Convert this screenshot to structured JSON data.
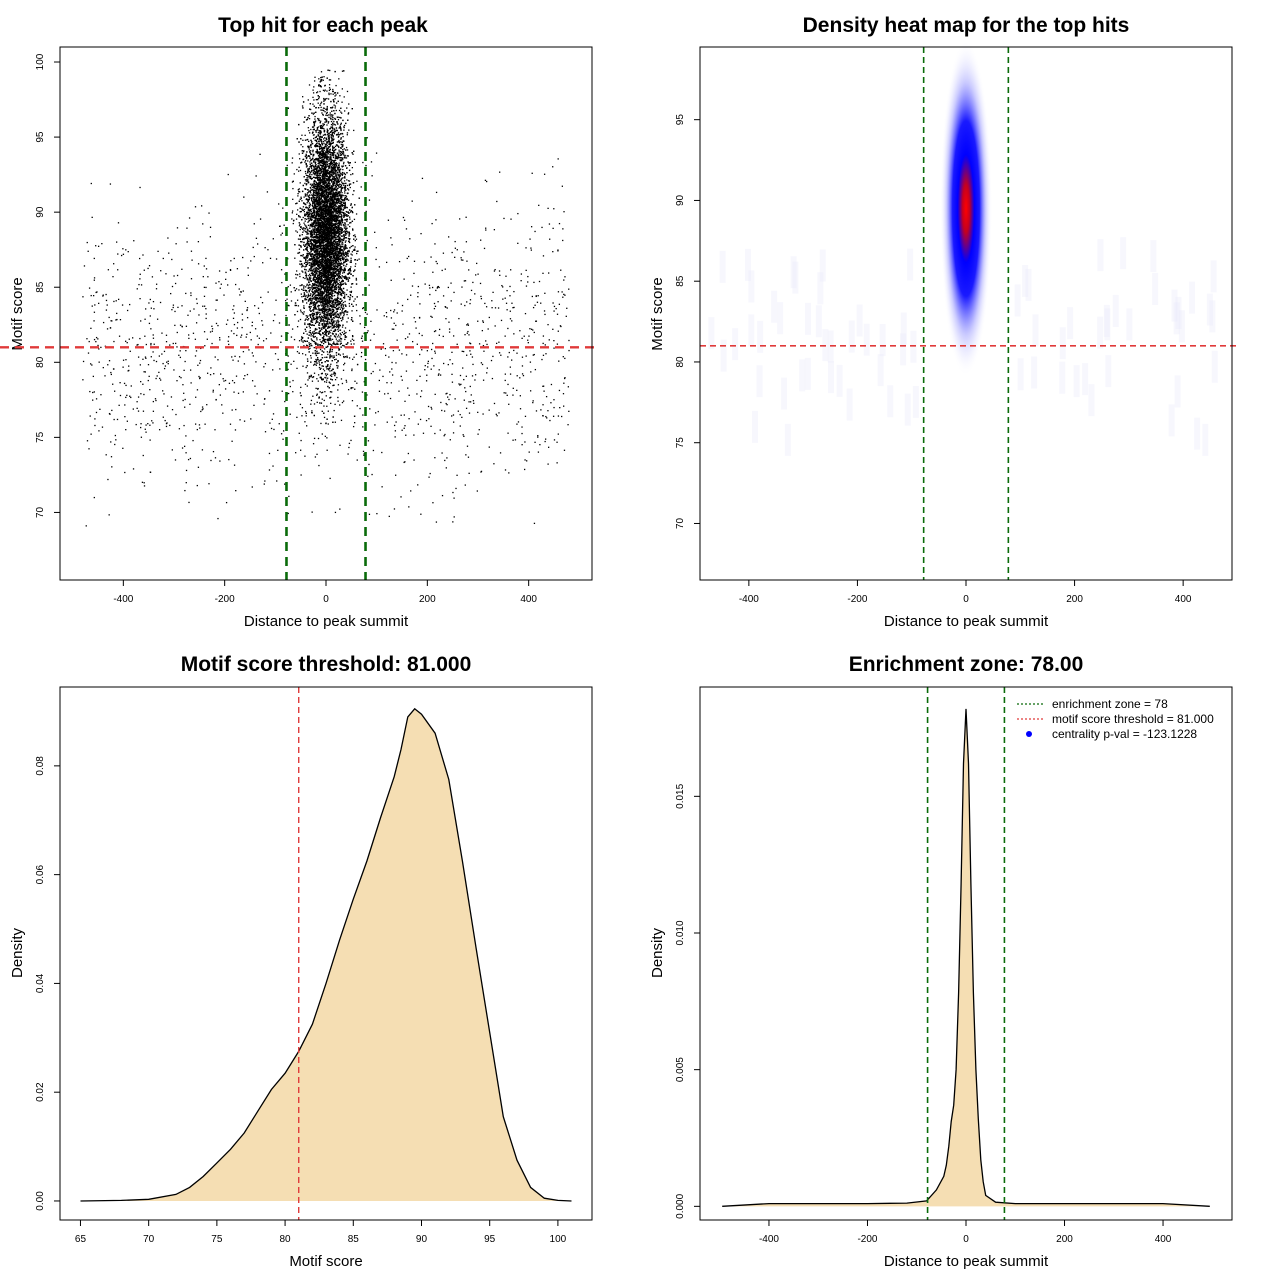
{
  "colors": {
    "green": "#0a6b0a",
    "red": "#e03a3a",
    "fill": "#f5deb3",
    "blue": "#0000ff",
    "hot": "#ff0000"
  },
  "chart_data": [
    {
      "id": "scatter",
      "type": "scatter",
      "title": "Top hit for each peak",
      "xlabel": "Distance to peak summit",
      "ylabel": "Motif score",
      "xlim": [
        -525,
        525
      ],
      "ylim": [
        65.5,
        101
      ],
      "xticks": [
        -400,
        -200,
        0,
        200,
        400
      ],
      "yticks": [
        70,
        75,
        80,
        85,
        90,
        95,
        100
      ],
      "vlines": [
        -78,
        78
      ],
      "hline": 81,
      "central_cluster": {
        "x_center": 0,
        "x_sd": 22,
        "y_center": 88.5,
        "y_sd": 4,
        "y_range": [
          72.5,
          99.5
        ],
        "approx_points": 9000
      },
      "background": {
        "x_range": [
          -480,
          480
        ],
        "y_range": [
          69,
          98
        ],
        "approx_points": 1500
      }
    },
    {
      "id": "heatmap",
      "type": "heatmap",
      "title": "Density heat map for the top hits",
      "xlabel": "Distance to peak summit",
      "ylabel": "Motif score",
      "xlim": [
        -490,
        490
      ],
      "ylim": [
        66.5,
        99.5
      ],
      "xticks": [
        -400,
        -200,
        0,
        200,
        400
      ],
      "yticks": [
        70,
        75,
        80,
        85,
        90,
        95
      ],
      "vlines": [
        -78,
        78
      ],
      "hline": 81,
      "peak": {
        "x": 0,
        "y": 89.5,
        "x_sd": 16,
        "y_sd": 3.6
      }
    },
    {
      "id": "score-density",
      "type": "area",
      "title": "Motif score threshold: 81.000",
      "xlabel": "Motif score",
      "ylabel": "Density",
      "xlim": [
        63.5,
        102.5
      ],
      "ylim": [
        -0.0035,
        0.0945
      ],
      "xticks": [
        65,
        70,
        75,
        80,
        85,
        90,
        95,
        100
      ],
      "yticks": [
        0.0,
        0.02,
        0.04,
        0.06,
        0.08
      ],
      "ytick_labels": [
        "0.00",
        "0.02",
        "0.04",
        "0.06",
        "0.08"
      ],
      "vline": 81,
      "x": [
        65,
        68,
        70,
        72,
        73,
        74,
        75,
        76,
        77,
        78,
        79,
        80,
        81,
        82,
        83,
        84,
        85,
        86,
        87,
        88,
        88.5,
        89,
        89.5,
        90,
        91,
        92,
        93,
        94,
        95,
        96,
        97,
        98,
        99,
        100,
        101
      ],
      "values": [
        0.0,
        0.0001,
        0.0003,
        0.0012,
        0.0025,
        0.0045,
        0.007,
        0.0095,
        0.0125,
        0.0165,
        0.0205,
        0.0235,
        0.0275,
        0.0325,
        0.04,
        0.048,
        0.0555,
        0.0625,
        0.0705,
        0.078,
        0.083,
        0.089,
        0.0905,
        0.0895,
        0.086,
        0.0775,
        0.0625,
        0.0465,
        0.031,
        0.0155,
        0.0075,
        0.0025,
        0.0005,
        0.0001,
        0.0
      ]
    },
    {
      "id": "enrichment",
      "type": "area",
      "title": "Enrichment zone: 78.00",
      "xlabel": "Distance to peak summit",
      "ylabel": "Density",
      "xlim": [
        -540,
        540
      ],
      "ylim": [
        -0.0005,
        0.019
      ],
      "xticks": [
        -400,
        -200,
        0,
        200,
        400
      ],
      "yticks": [
        0.0,
        0.005,
        0.01,
        0.015
      ],
      "ytick_labels": [
        "0.000",
        "0.005",
        "0.010",
        "0.015"
      ],
      "vlines": [
        -78,
        78
      ],
      "x": [
        -495,
        -400,
        -300,
        -200,
        -120,
        -80,
        -60,
        -45,
        -40,
        -35,
        -30,
        -25,
        -20,
        -15,
        -10,
        -5,
        0,
        5,
        10,
        15,
        20,
        25,
        30,
        35,
        40,
        60,
        100,
        200,
        300,
        400,
        495
      ],
      "values": [
        0.0,
        0.0001,
        0.0001,
        0.0001,
        0.00012,
        0.0002,
        0.0006,
        0.0011,
        0.0015,
        0.0022,
        0.0031,
        0.0037,
        0.005,
        0.0078,
        0.0118,
        0.0162,
        0.0182,
        0.0162,
        0.0118,
        0.0078,
        0.005,
        0.0032,
        0.0017,
        0.0009,
        0.0004,
        0.00015,
        0.0001,
        0.0001,
        0.0001,
        0.0001,
        0.0
      ],
      "legend": {
        "position": "top-right",
        "entries": [
          {
            "label": "enrichment zone = 78",
            "style": "green-dotted"
          },
          {
            "label": "motif score threshold = 81.000",
            "style": "red-dotted"
          },
          {
            "label": "centrality p-val = -123.1228",
            "style": "blue-dot"
          }
        ]
      }
    }
  ]
}
